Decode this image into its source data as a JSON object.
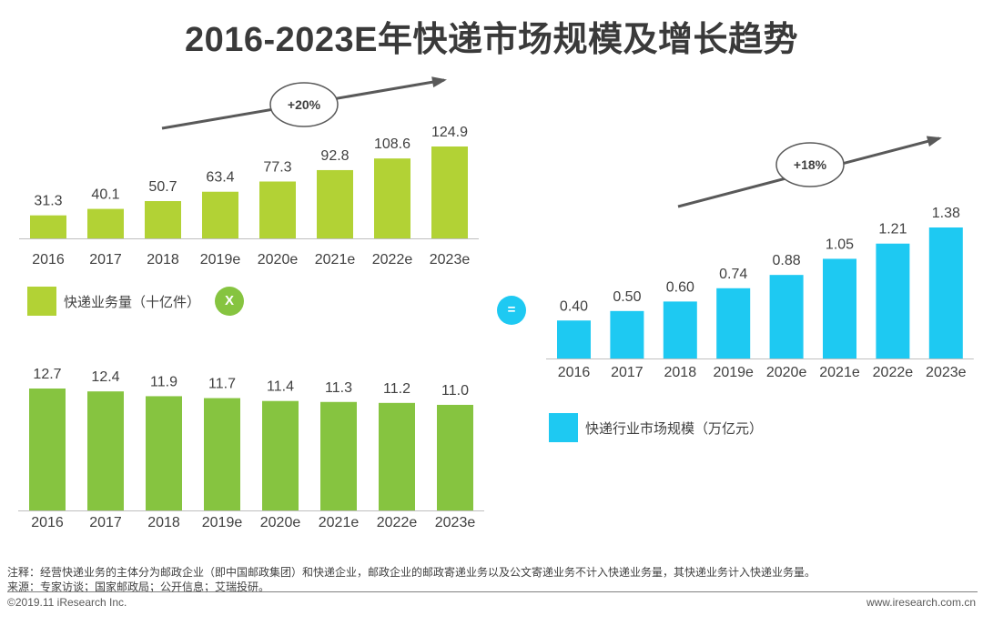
{
  "title": "2016-2023E年快递市场规模及增长趋势",
  "colors": {
    "volume": "#b2d235",
    "price": "#86c440",
    "market": "#1ec9f2",
    "arrow": "#595959"
  },
  "chart_data": [
    {
      "type": "bar",
      "name": "volume",
      "categories": [
        "2016",
        "2017",
        "2018",
        "2019e",
        "2020e",
        "2021e",
        "2022e",
        "2023e"
      ],
      "values": [
        31.3,
        40.1,
        50.7,
        63.4,
        77.3,
        92.8,
        108.6,
        124.9
      ],
      "value_labels": [
        "31.3",
        "40.1",
        "50.7",
        "63.4",
        "77.3",
        "92.8",
        "108.6",
        "124.9"
      ],
      "legend": "快递业务量（十亿件）",
      "growth_label": "+20%",
      "ylim": [
        0,
        124.9
      ]
    },
    {
      "type": "bar",
      "name": "price",
      "categories": [
        "2016",
        "2017",
        "2018",
        "2019e",
        "2020e",
        "2021e",
        "2022e",
        "2023e"
      ],
      "values": [
        12.7,
        12.4,
        11.9,
        11.7,
        11.4,
        11.3,
        11.2,
        11.0
      ],
      "value_labels": [
        "12.7",
        "12.4",
        "11.9",
        "11.7",
        "11.4",
        "11.3",
        "11.2",
        "11.0"
      ],
      "ylim": [
        0,
        12.7
      ]
    },
    {
      "type": "bar",
      "name": "market",
      "categories": [
        "2016",
        "2017",
        "2018",
        "2019e",
        "2020e",
        "2021e",
        "2022e",
        "2023e"
      ],
      "values": [
        0.4,
        0.5,
        0.6,
        0.74,
        0.88,
        1.05,
        1.21,
        1.38
      ],
      "value_labels": [
        "0.40",
        "0.50",
        "0.60",
        "0.74",
        "0.88",
        "1.05",
        "1.21",
        "1.38"
      ],
      "legend": "快递行业市场规模（万亿元）",
      "growth_label": "+18%",
      "ylim": [
        0,
        1.38
      ]
    }
  ],
  "operators": {
    "multiply": "X",
    "equals": "="
  },
  "notes": {
    "note": "注释：经营快递业务的主体分为邮政企业（即中国邮政集团）和快递企业，邮政企业的邮政寄递业务以及公文寄递业务不计入快递业务量，其快递业务计入快递业务量。",
    "source": "来源：专家访谈；国家邮政局；公开信息；艾瑞投研。"
  },
  "footer": {
    "left": "©2019.11 iResearch Inc.",
    "right": "www.iresearch.com.cn"
  }
}
